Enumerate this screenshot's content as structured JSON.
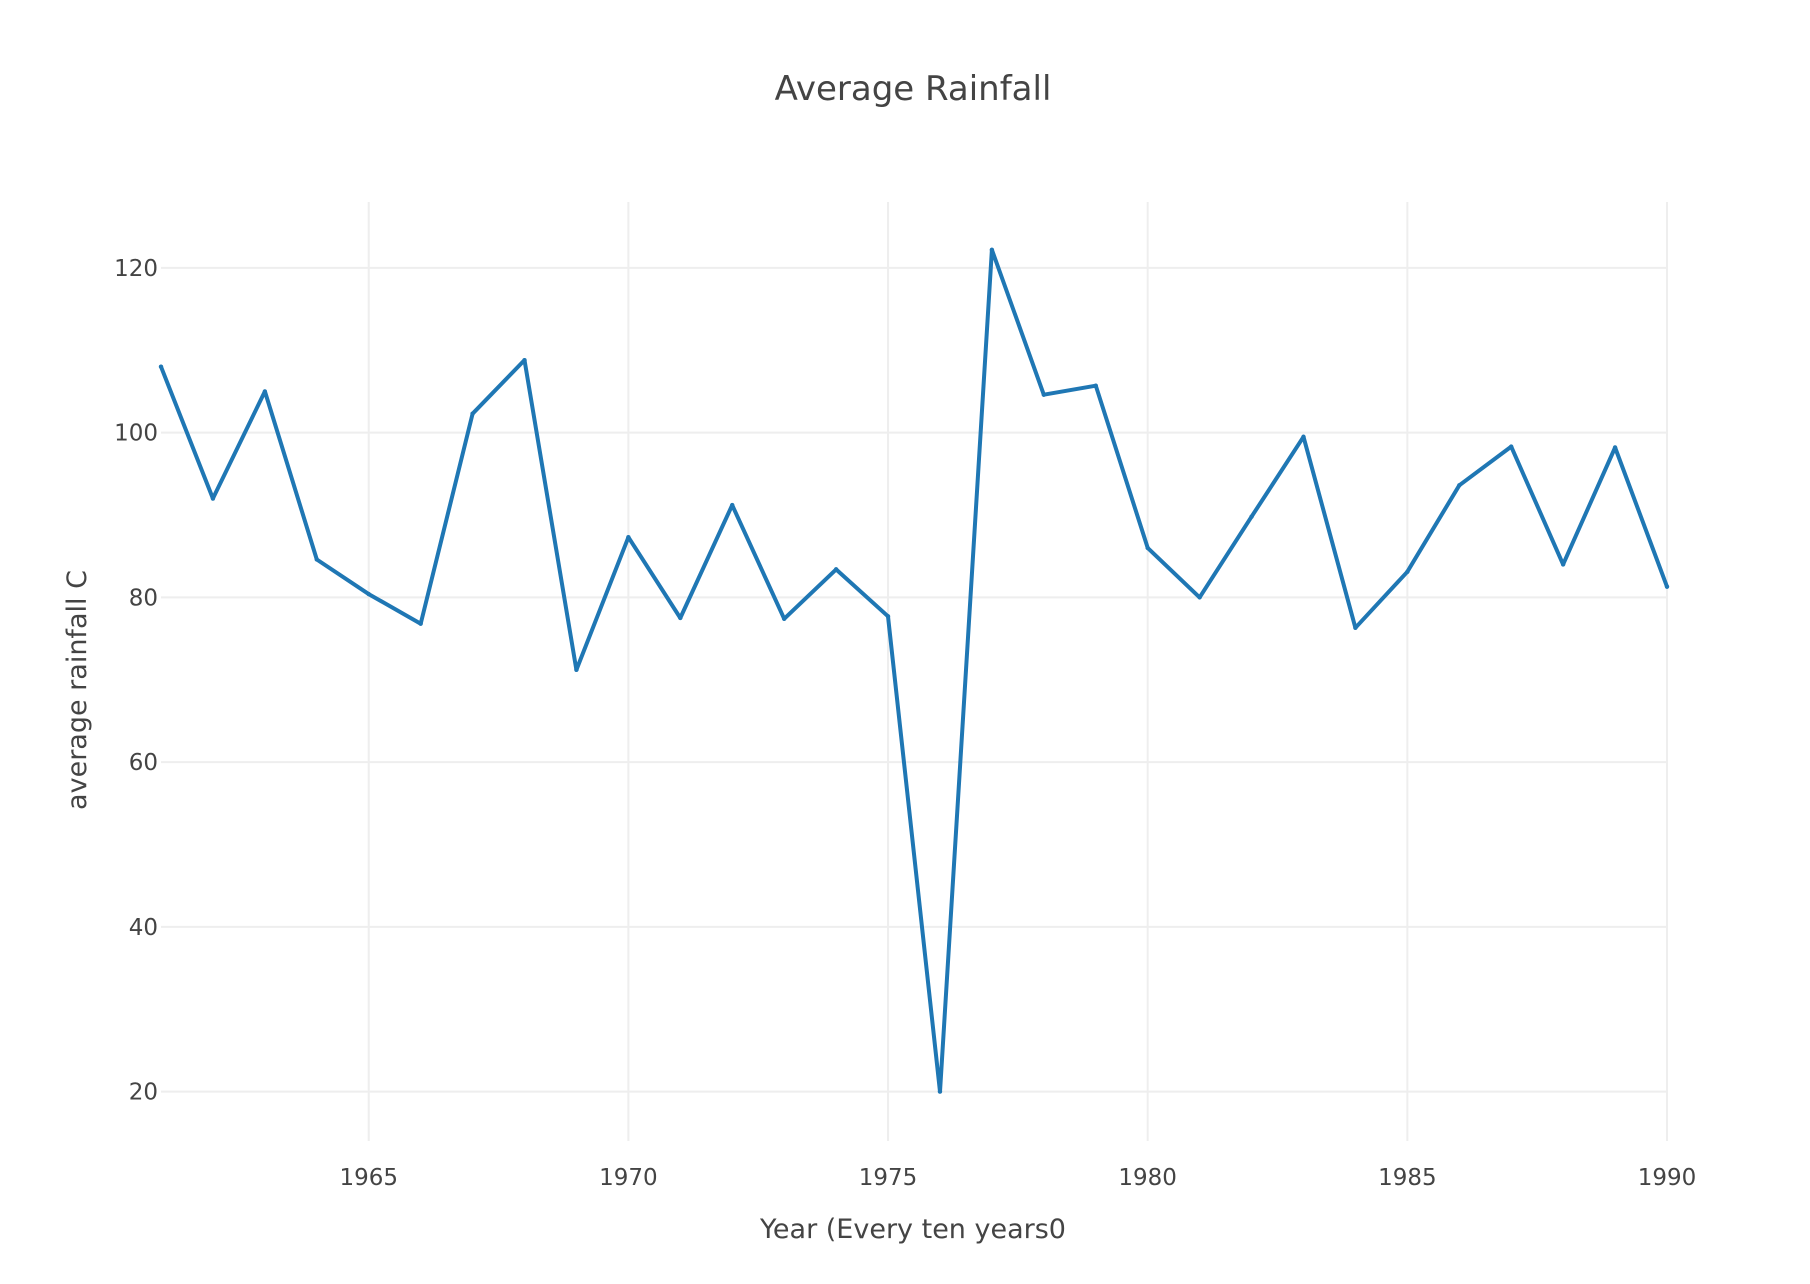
{
  "chart_data": {
    "type": "line",
    "title": "Average Rainfall",
    "xlabel": "Year (Every ten years0",
    "ylabel": "average rainfall C",
    "xlim": [
      1961,
      1990
    ],
    "ylim": [
      14,
      128
    ],
    "x_ticks": [
      1965,
      1970,
      1975,
      1980,
      1985,
      1990
    ],
    "y_ticks": [
      20,
      40,
      60,
      80,
      100,
      120
    ],
    "grid": true,
    "legend": "none",
    "series": [
      {
        "color": "#1f77b4",
        "x": [
          1961,
          1962,
          1963,
          1964,
          1965,
          1966,
          1967,
          1968,
          1969,
          1970,
          1971,
          1972,
          1973,
          1974,
          1975,
          1976,
          1977,
          1978,
          1979,
          1980,
          1981,
          1982,
          1983,
          1984,
          1985,
          1986,
          1987,
          1988,
          1989,
          1990
        ],
        "y": [
          108,
          92,
          105,
          84.6,
          80.4,
          76.8,
          102.3,
          108.8,
          71.2,
          87.3,
          77.5,
          91.2,
          77.4,
          83.4,
          77.7,
          20,
          122.2,
          104.6,
          105.7,
          86,
          80,
          89.8,
          99.5,
          76.3,
          83.1,
          93.6,
          98.3,
          84,
          98.2,
          81.3
        ]
      }
    ]
  }
}
